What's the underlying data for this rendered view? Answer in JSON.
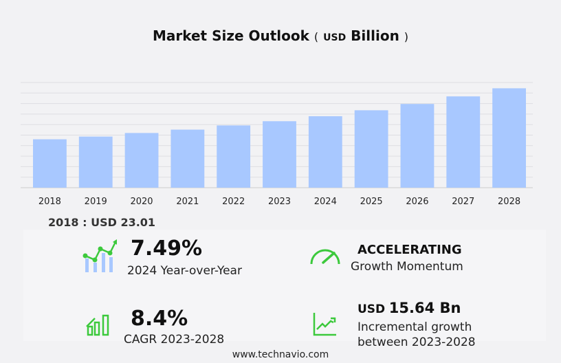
{
  "chart_data": {
    "type": "bar",
    "title": "Market Size Outlook",
    "unit_prefix": "USD",
    "unit": "Billion",
    "categories": [
      "2018",
      "2019",
      "2020",
      "2021",
      "2022",
      "2023",
      "2024",
      "2025",
      "2026",
      "2027",
      "2028"
    ],
    "values": [
      23.01,
      24.3,
      26.0,
      27.6,
      29.6,
      31.6,
      33.97,
      36.8,
      39.8,
      43.4,
      47.25
    ],
    "ylim": [
      0,
      50
    ],
    "grid": true,
    "bar_color": "#a8c8ff"
  },
  "base": "2018 : USD  23.01",
  "stats": {
    "yoy_value": "7.49%",
    "yoy_label": "2024 Year-over-Year",
    "momentum_value": "ACCELERATING",
    "momentum_label": "Growth Momentum",
    "cagr_value": "8.4%",
    "cagr_label": "CAGR 2023-2028",
    "inc_prefix": "USD",
    "inc_value": "15.64 Bn",
    "inc_label1": "Incremental growth",
    "inc_label2": "between 2023-2028"
  },
  "accent": "#3cc93c",
  "footer": "www.technavio.com"
}
